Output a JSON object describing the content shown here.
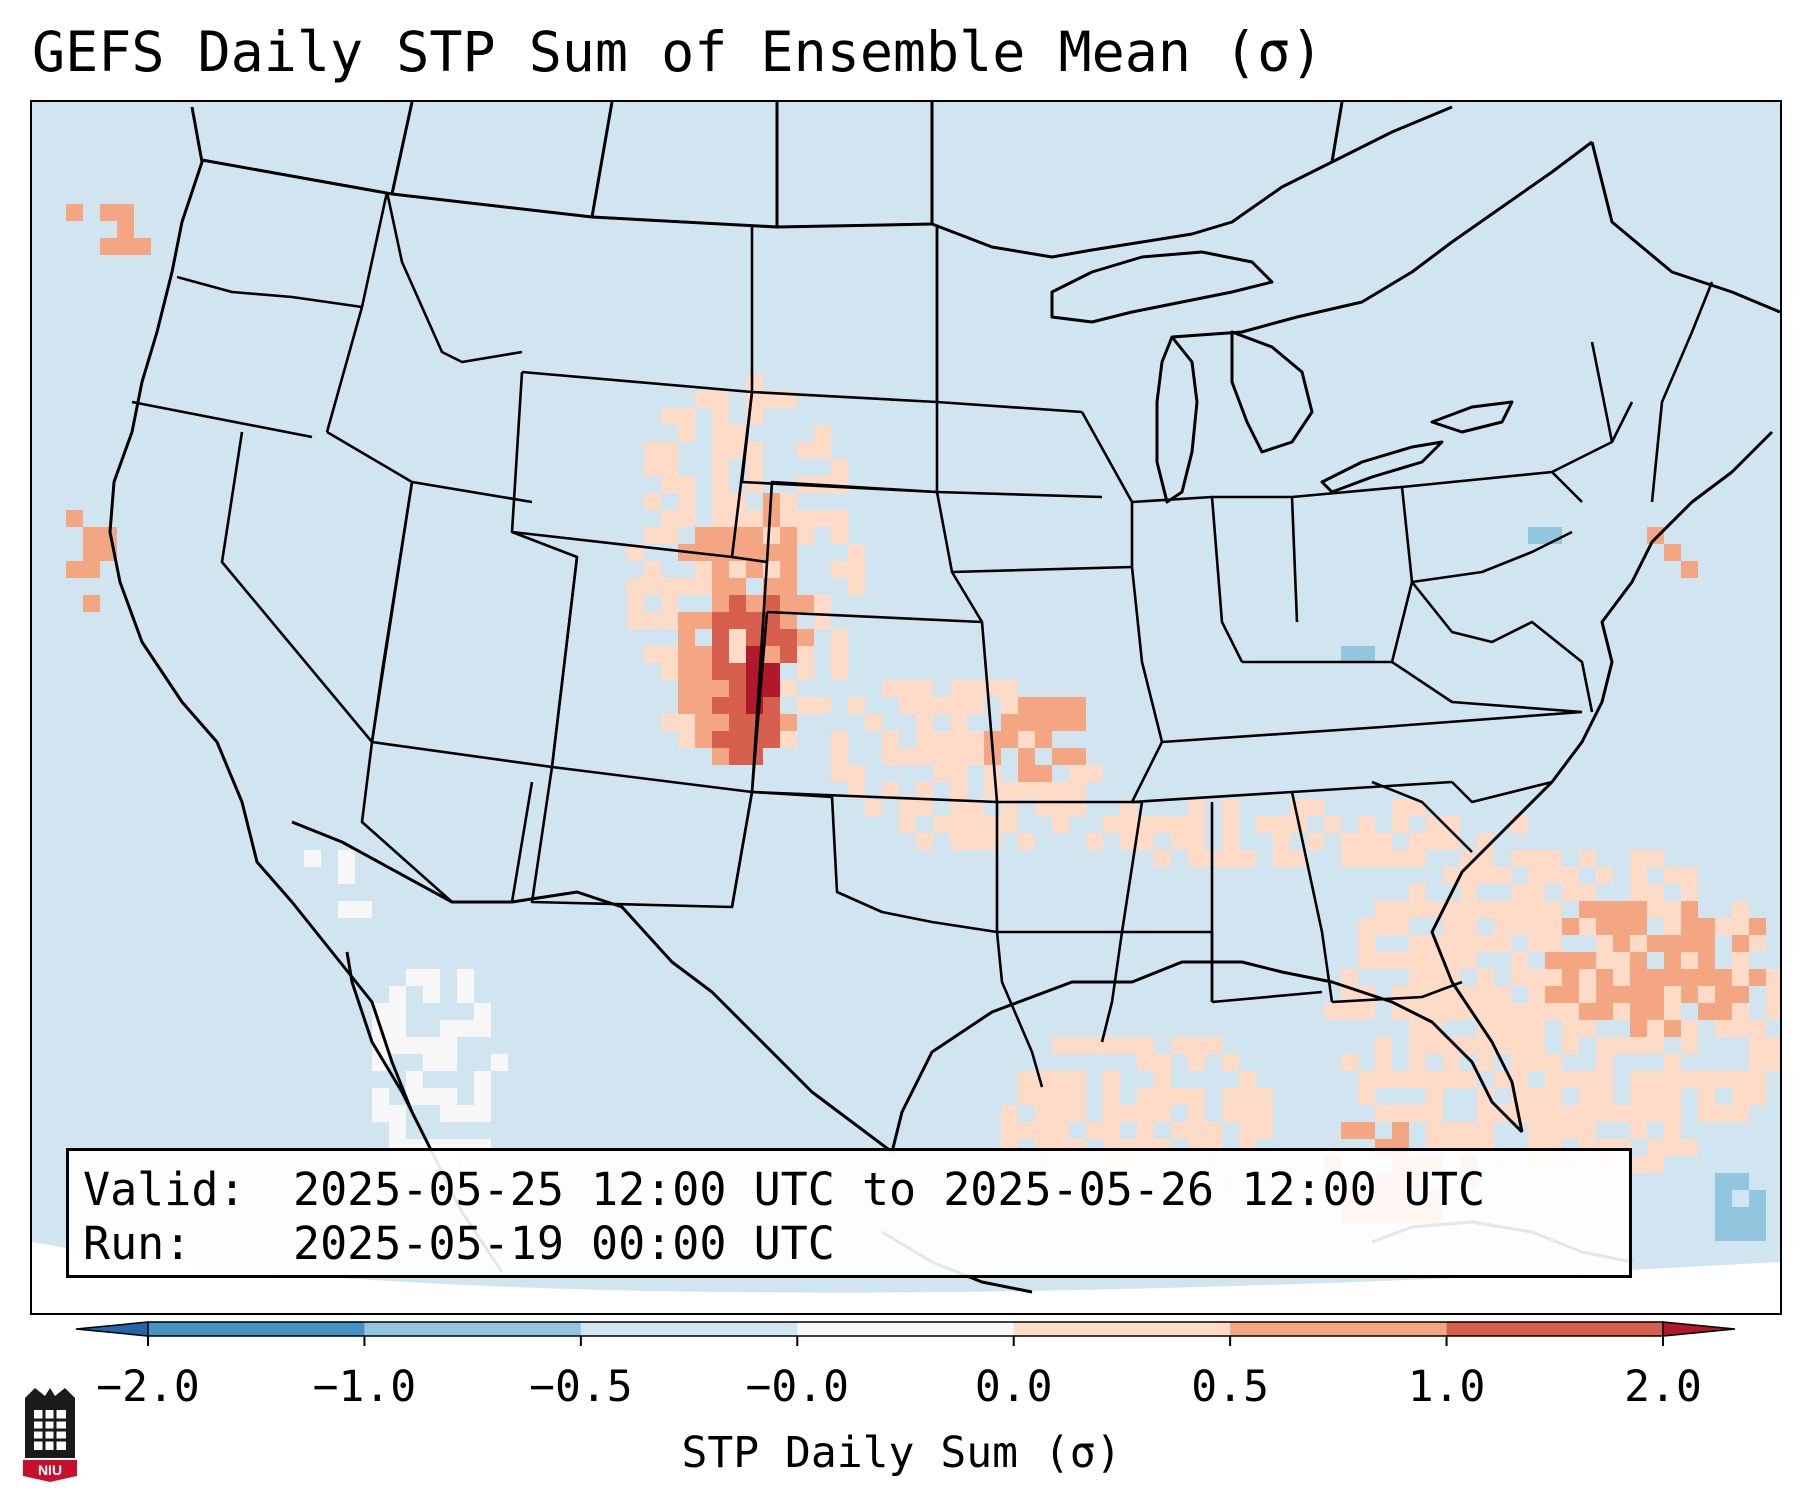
{
  "title": "GEFS Daily STP Sum of Ensemble Mean (σ)",
  "info": {
    "valid_label": "Valid:",
    "valid_value": "2025-05-25 12:00 UTC to 2025-05-26 12:00 UTC",
    "run_label": "Run:",
    "run_value": "2025-05-19 00:00 UTC"
  },
  "colorbar": {
    "label": "STP Daily Sum (σ)",
    "ticks": [
      "−2.0",
      "−1.0",
      "−0.5",
      "−0.0",
      "0.0",
      "0.5",
      "1.0",
      "2.0"
    ],
    "colors": [
      "#4393c3",
      "#92c5de",
      "#d1e5f0",
      "#f7f7f7",
      "#fddbc7",
      "#f4a582",
      "#d6604d"
    ],
    "extend_low": "#2166ac",
    "extend_high": "#b2182b"
  },
  "map": {
    "background_class": "#d1e5f0",
    "region": "Continental United States",
    "features": [
      "state borders",
      "country borders",
      "coastlines",
      "lakes"
    ],
    "highlight_areas": [
      {
        "region": "Front Range (Wyoming/Colorado/Nebraska/Kansas)",
        "class": "1.0–2.0"
      },
      {
        "region": "Southern Plains (Kansas/Oklahoma)",
        "class": "0.0–0.5"
      },
      {
        "region": "Tennessee Valley / Carolinas",
        "class": "0.0–0.5"
      },
      {
        "region": "Florida / Western Atlantic",
        "class": "0.5–1.0"
      },
      {
        "region": "Gulf of Mexico",
        "class": "0.0–0.5"
      },
      {
        "region": "Northern Mexico",
        "class": "−0.0–0.0"
      }
    ]
  },
  "logo_text": "NIU"
}
